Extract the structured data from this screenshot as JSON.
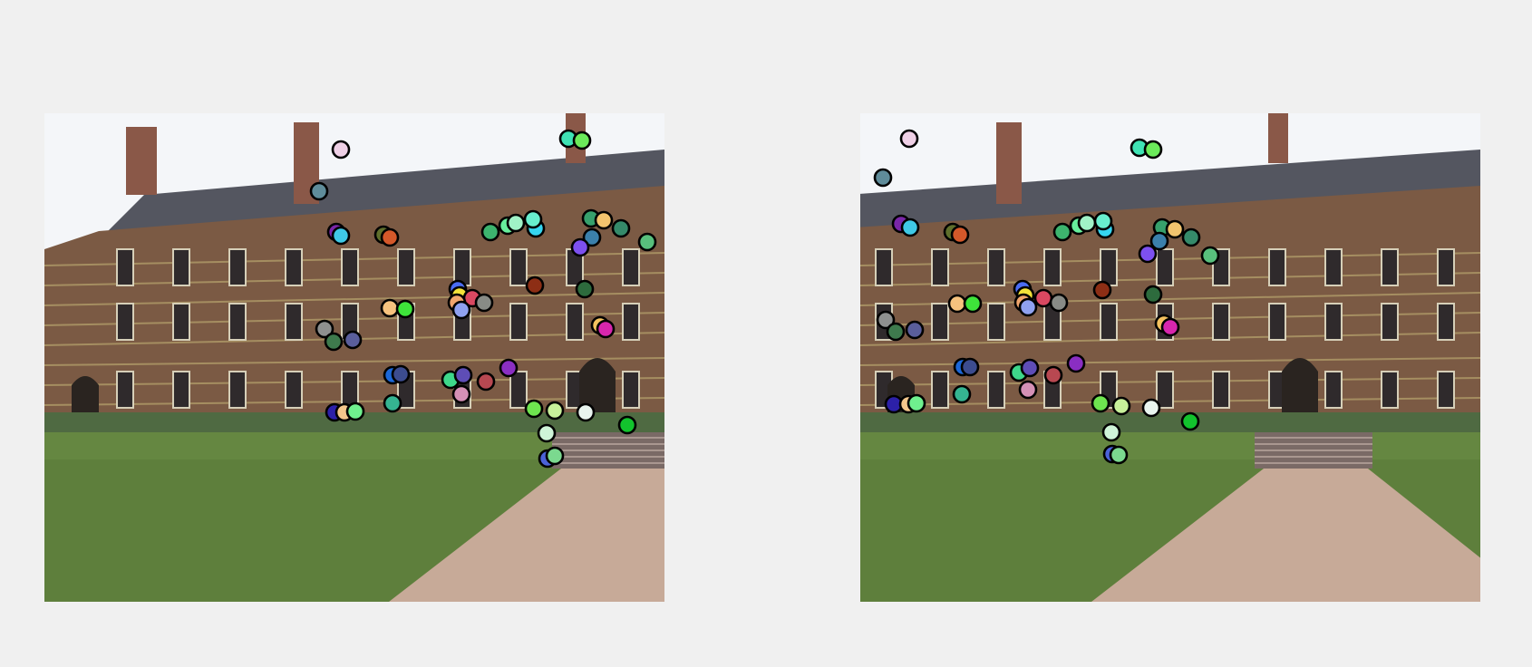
{
  "figure": {
    "background": "#f0f0f0",
    "panels": [
      {
        "name": "left-image",
        "scene": {
          "building_shift": 0,
          "sky": "#f4f6f9",
          "brick": "#7b5a44",
          "roof": "#545660",
          "grass": "#5e7f3c",
          "path": "#c7aa98"
        },
        "keypoints": [
          [
            "#efd0e6",
            327,
            40
          ],
          [
            "#5f8c9a",
            303,
            86
          ],
          [
            "#3fe3b4",
            578,
            28
          ],
          [
            "#6bea5a",
            593,
            30
          ],
          [
            "#7a26a8",
            322,
            131
          ],
          [
            "#3fc9e6",
            327,
            135
          ],
          [
            "#5f6f2c",
            374,
            134
          ],
          [
            "#d4582a",
            381,
            137
          ],
          [
            "#3db46e",
            492,
            131
          ],
          [
            "#67ee9b",
            511,
            124
          ],
          [
            "#a0f2c7",
            520,
            121
          ],
          [
            "#35d5f0",
            542,
            127
          ],
          [
            "#68eecd",
            539,
            117
          ],
          [
            "#37a06c",
            603,
            116
          ],
          [
            "#f2c46e",
            617,
            118
          ],
          [
            "#358a6a",
            636,
            127
          ],
          [
            "#58bf7c",
            665,
            142
          ],
          [
            "#3b80ab",
            604,
            137
          ],
          [
            "#7d50ef",
            591,
            148
          ],
          [
            "#8d2e15",
            541,
            190
          ],
          [
            "#2d6b3d",
            596,
            194
          ],
          [
            "#4a6cf2",
            456,
            194
          ],
          [
            "#f2e23a",
            458,
            201
          ],
          [
            "#d94861",
            472,
            204
          ],
          [
            "#888b86",
            485,
            209
          ],
          [
            "#f0a56c",
            455,
            209
          ],
          [
            "#8fa1f0",
            460,
            217
          ],
          [
            "#f6c27e",
            381,
            215
          ],
          [
            "#3ee43a",
            398,
            216
          ],
          [
            "#8e908f",
            309,
            238
          ],
          [
            "#3e7a4d",
            319,
            252
          ],
          [
            "#5a5e9b",
            340,
            250
          ],
          [
            "#f4c25f",
            613,
            234
          ],
          [
            "#d726ad",
            619,
            238
          ],
          [
            "#1c67d8",
            384,
            289
          ],
          [
            "#3c4c8f",
            393,
            288
          ],
          [
            "#3ed78a",
            448,
            294
          ],
          [
            "#5e4db6",
            462,
            289
          ],
          [
            "#b84851",
            487,
            296
          ],
          [
            "#8a2ec2",
            512,
            281
          ],
          [
            "#d590b6",
            460,
            310
          ],
          [
            "#35b491",
            384,
            320
          ],
          [
            "#2c20a8",
            320,
            330
          ],
          [
            "#f4c78c",
            331,
            330
          ],
          [
            "#6ff08e",
            343,
            329
          ],
          [
            "#6ee44f",
            540,
            326
          ],
          [
            "#c8f09a",
            563,
            328
          ],
          [
            "#e9f5ef",
            597,
            330
          ],
          [
            "#12c32d",
            643,
            344
          ],
          [
            "#cff4d8",
            554,
            353
          ],
          [
            "#4b62d8",
            555,
            381
          ],
          [
            "#7bd98f",
            563,
            378
          ]
        ]
      },
      {
        "name": "right-image",
        "scene": {
          "building_shift": 125,
          "sky": "#f4f6f9",
          "brick": "#7b5a44",
          "roof": "#545660",
          "grass": "#5e7f3c",
          "path": "#c7aa98"
        },
        "keypoints": [
          [
            "#efd0e6",
            54,
            28
          ],
          [
            "#5f8c9a",
            25,
            71
          ],
          [
            "#3fe3b4",
            308,
            38
          ],
          [
            "#6bea5a",
            323,
            40
          ],
          [
            "#7a26a8",
            45,
            122
          ],
          [
            "#3fc9e6",
            55,
            126
          ],
          [
            "#5f6f2c",
            102,
            131
          ],
          [
            "#d4582a",
            110,
            134
          ],
          [
            "#3db46e",
            223,
            131
          ],
          [
            "#67ee9b",
            241,
            124
          ],
          [
            "#a0f2c7",
            250,
            121
          ],
          [
            "#35d5f0",
            270,
            128
          ],
          [
            "#68eecd",
            268,
            119
          ],
          [
            "#37a06c",
            333,
            126
          ],
          [
            "#f2c46e",
            347,
            128
          ],
          [
            "#358a6a",
            365,
            137
          ],
          [
            "#58bf7c",
            386,
            157
          ],
          [
            "#3b80ab",
            330,
            141
          ],
          [
            "#7d50ef",
            317,
            155
          ],
          [
            "#8d2e15",
            267,
            195
          ],
          [
            "#2d6b3d",
            323,
            200
          ],
          [
            "#4a6cf2",
            179,
            194
          ],
          [
            "#f2e23a",
            182,
            201
          ],
          [
            "#d94861",
            202,
            204
          ],
          [
            "#888b86",
            219,
            209
          ],
          [
            "#f0a56c",
            180,
            209
          ],
          [
            "#8fa1f0",
            185,
            214
          ],
          [
            "#f6c27e",
            107,
            210
          ],
          [
            "#3ee43a",
            124,
            210
          ],
          [
            "#8e908f",
            28,
            228
          ],
          [
            "#3e7a4d",
            39,
            241
          ],
          [
            "#5a5e9b",
            60,
            239
          ],
          [
            "#f4c25f",
            335,
            232
          ],
          [
            "#d726ad",
            342,
            236
          ],
          [
            "#1c67d8",
            113,
            280
          ],
          [
            "#3c4c8f",
            121,
            280
          ],
          [
            "#3ed78a",
            175,
            286
          ],
          [
            "#5e4db6",
            187,
            281
          ],
          [
            "#b84851",
            213,
            289
          ],
          [
            "#8a2ec2",
            238,
            276
          ],
          [
            "#d590b6",
            185,
            305
          ],
          [
            "#35b491",
            112,
            310
          ],
          [
            "#2c20a8",
            37,
            321
          ],
          [
            "#f4c78c",
            53,
            321
          ],
          [
            "#6ff08e",
            62,
            320
          ],
          [
            "#6ee44f",
            265,
            320
          ],
          [
            "#c8f09a",
            288,
            323
          ],
          [
            "#e9f5ef",
            321,
            325
          ],
          [
            "#12c32d",
            364,
            340
          ],
          [
            "#cff4d8",
            277,
            352
          ],
          [
            "#4b62d8",
            278,
            376
          ],
          [
            "#7bd98f",
            285,
            377
          ]
        ]
      }
    ]
  }
}
